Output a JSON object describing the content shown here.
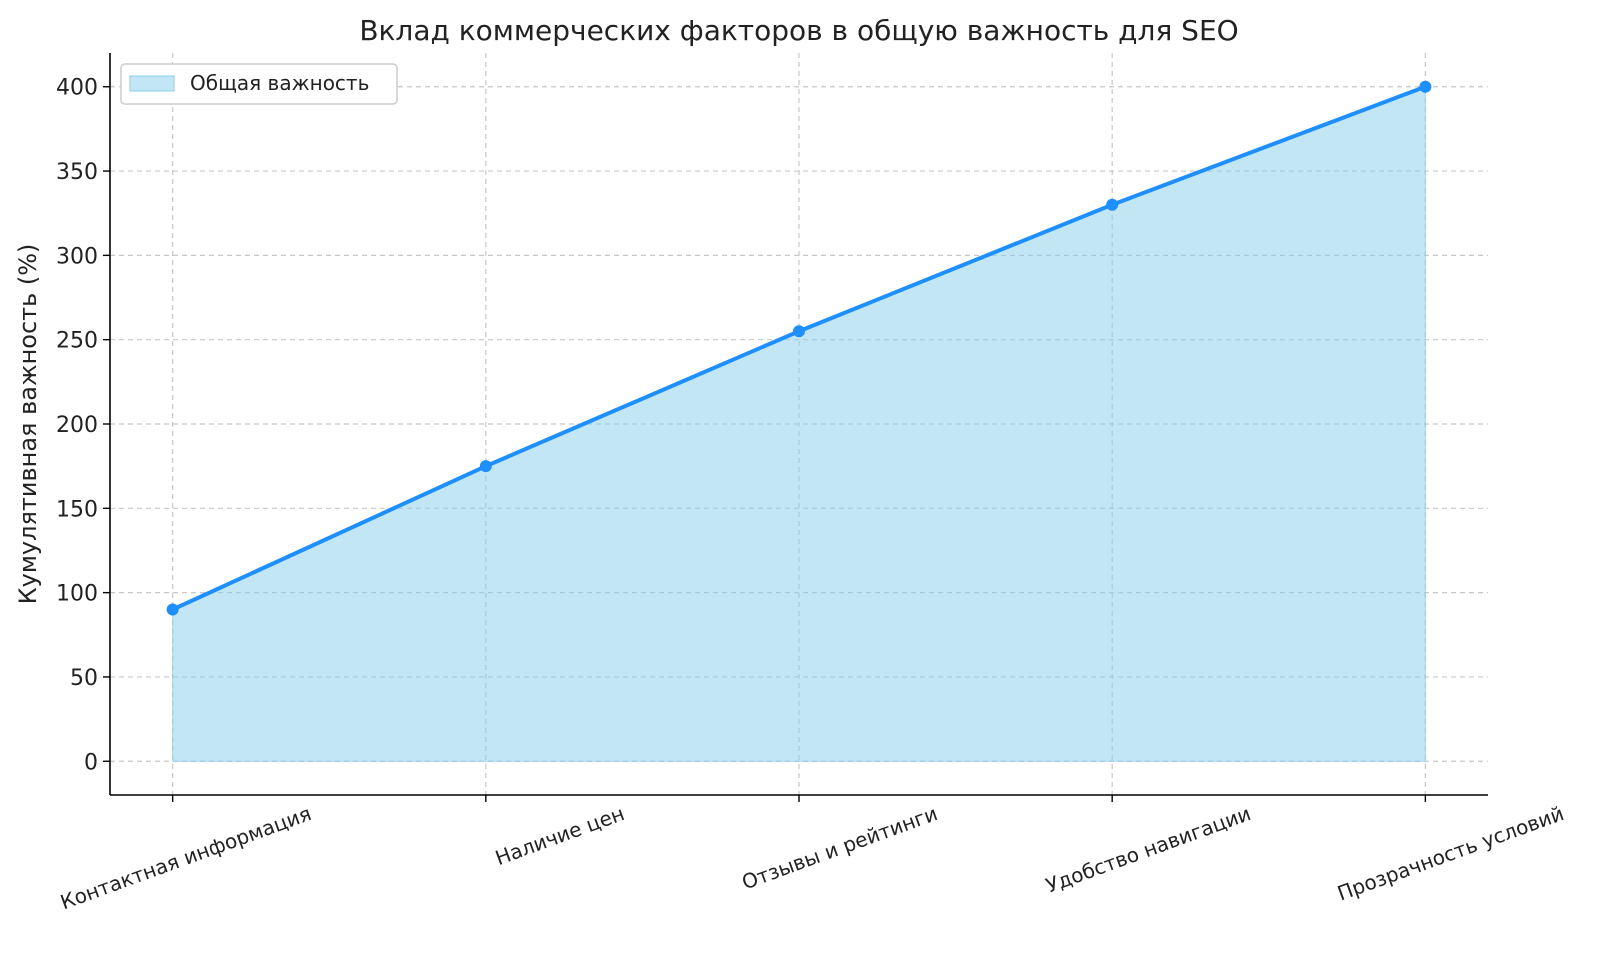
{
  "chart_data": {
    "type": "area",
    "title": "Вклад коммерческих факторов в общую важность для SEO",
    "xlabel": "",
    "ylabel": "Кумулятивная важность (%)",
    "categories": [
      "Контактная информация",
      "Наличие цен",
      "Отзывы и рейтинги",
      "Удобство навигации",
      "Прозрачность условий"
    ],
    "series": [
      {
        "name": "Общая важность",
        "values": [
          90,
          175,
          255,
          330,
          400
        ]
      }
    ],
    "ylim": [
      -20,
      420
    ],
    "yticks": [
      0,
      50,
      100,
      150,
      200,
      250,
      300,
      350,
      400
    ],
    "grid": true,
    "legend_position": "top-left",
    "markers": true,
    "x_tick_rotation_deg": 20,
    "colors": {
      "line": "#1e8fff",
      "fill": "#87ceeb",
      "grid": "#c8c8c8"
    }
  }
}
